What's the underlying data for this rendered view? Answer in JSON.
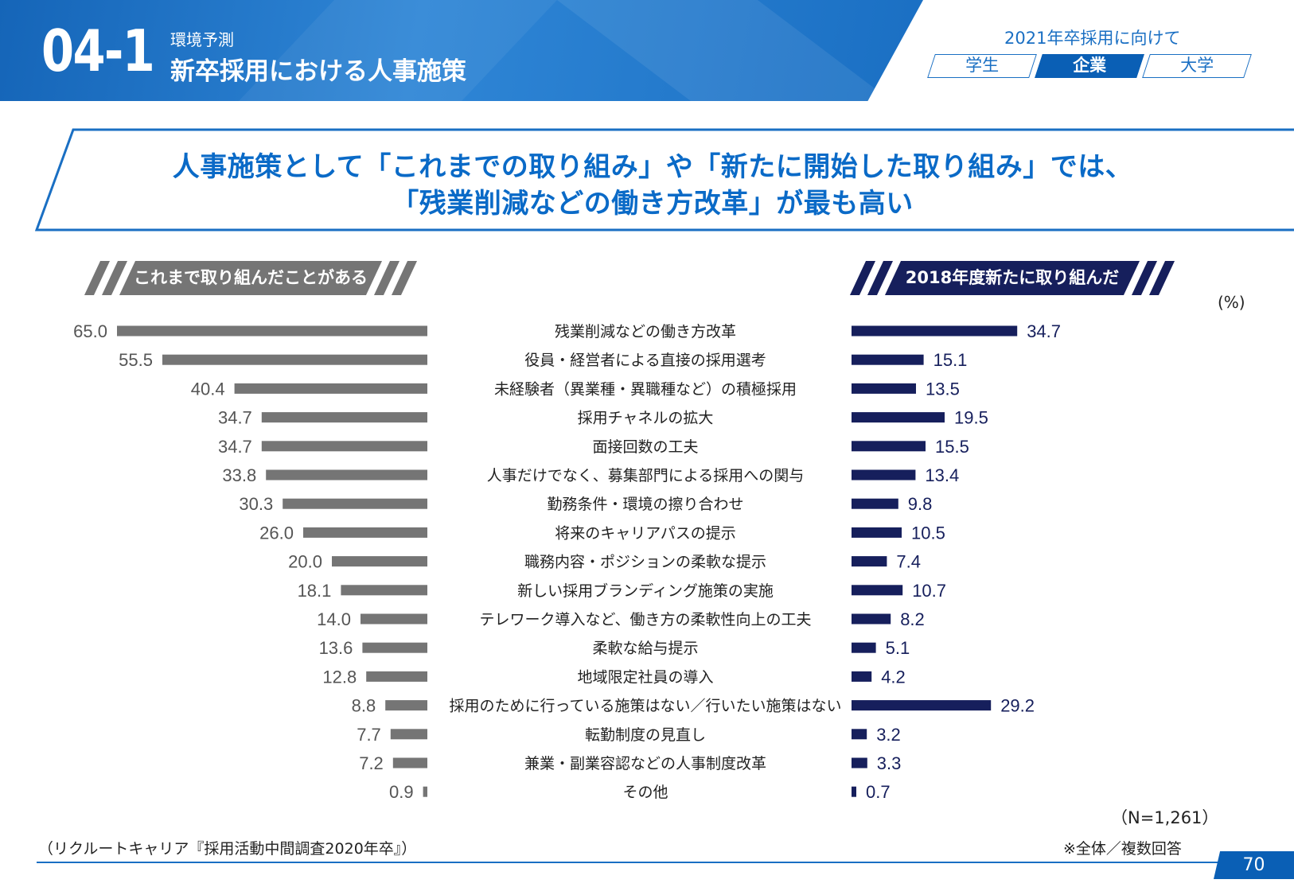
{
  "header": {
    "section_number": "04-1",
    "subtitle": "環境予測",
    "title": "新卒採用における人事施策",
    "toggle_caption": "2021年卒採用に向けて",
    "tabs": [
      {
        "label": "学生",
        "active": false
      },
      {
        "label": "企業",
        "active": true
      },
      {
        "label": "大学",
        "active": false
      }
    ]
  },
  "headline": {
    "line1": "人事施策として「これまでの取り組み」や「新たに開始した取り組み」では、",
    "line2": "「残業削減などの働き方改革」が最も高い"
  },
  "chart_data": {
    "type": "bar",
    "title": "",
    "unit": "(%)",
    "categories": [
      "残業削減などの働き方改革",
      "役員・経営者による直接の採用選考",
      "未経験者（異業種・異職種など）の積極採用",
      "採用チャネルの拡大",
      "面接回数の工夫",
      "人事だけでなく、募集部門による採用への関与",
      "勤務条件・環境の擦り合わせ",
      "将来のキャリアパスの提示",
      "職務内容・ポジションの柔軟な提示",
      "新しい採用ブランディング施策の実施",
      "テレワーク導入など、働き方の柔軟性向上の工夫",
      "柔軟な給与提示",
      "地域限定社員の導入",
      "採用のために行っている施策はない／行いたい施策はない",
      "転勤制度の見直し",
      "兼業・副業容認などの人事制度改革",
      "その他"
    ],
    "series": [
      {
        "name": "これまで取り組んだことがある",
        "color": "#757575",
        "values": [
          65.0,
          55.5,
          40.4,
          34.7,
          34.7,
          33.8,
          30.3,
          26.0,
          20.0,
          18.1,
          14.0,
          13.6,
          12.8,
          8.8,
          7.7,
          7.2,
          0.9
        ],
        "labels": [
          "65.0",
          "55.5",
          "40.4",
          "34.7",
          "34.7",
          "33.8",
          "30.3",
          "26.0",
          "20.0",
          "18.1",
          "14.0",
          "13.6",
          "12.8",
          "8.8",
          "7.7",
          "7.2",
          "0.9"
        ]
      },
      {
        "name": "2018年度新たに取り組んだ",
        "color": "#161f5c",
        "values": [
          34.7,
          15.1,
          13.5,
          19.5,
          15.5,
          13.4,
          9.8,
          10.5,
          7.4,
          10.7,
          8.2,
          5.1,
          4.2,
          29.2,
          3.2,
          3.3,
          0.7
        ],
        "labels": [
          "34.7",
          "15.1",
          "13.5",
          "19.5",
          "15.5",
          "13.4",
          "9.8",
          "10.5",
          "7.4",
          "10.7",
          "8.2",
          "5.1",
          "4.2",
          "29.2",
          "3.2",
          "3.3",
          "0.7"
        ]
      }
    ],
    "xlim": [
      0,
      65
    ]
  },
  "footer": {
    "n_label": "（N=1,261）",
    "note": "※全体／複数回答",
    "source": "（リクルートキャリア『採用活動中間調査2020年卒』）",
    "page_number": "70"
  },
  "colors": {
    "brand_blue": "#1a6fc3",
    "dark_navy": "#161f5c",
    "gray_bar": "#757575",
    "label_gray": "#555555"
  }
}
